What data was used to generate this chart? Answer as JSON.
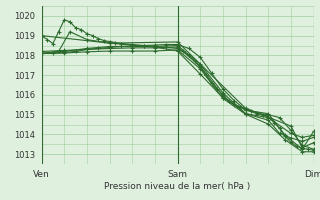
{
  "title": "Pression niveau de la mer( hPa )",
  "bg_color": "#dff0df",
  "grid_color": "#9ecf9e",
  "line_color": "#2d6a2d",
  "marker_color": "#2d6a2d",
  "xlim": [
    0,
    48
  ],
  "ylim": [
    1012.5,
    1020.5
  ],
  "yticks": [
    1013,
    1014,
    1015,
    1016,
    1017,
    1018,
    1019,
    1020
  ],
  "xtick_positions": [
    0,
    24,
    48
  ],
  "xtick_labels": [
    "Ven",
    "Sam",
    "Dim"
  ],
  "series": [
    [
      0,
      1019.0,
      1,
      1018.8,
      2,
      1018.6,
      3,
      1019.2,
      4,
      1019.8,
      5,
      1019.7,
      6,
      1019.4,
      7,
      1019.3,
      8,
      1019.1,
      9,
      1019.0,
      10,
      1018.85,
      11,
      1018.75,
      12,
      1018.7,
      13,
      1018.65,
      14,
      1018.6,
      16,
      1018.55,
      18,
      1018.5,
      20,
      1018.45,
      22,
      1018.4,
      24,
      1018.35,
      25,
      1018.2,
      26,
      1018.0,
      27,
      1017.7,
      28,
      1017.4,
      29,
      1017.0,
      30,
      1016.6,
      31,
      1016.3,
      32,
      1016.0,
      33,
      1015.7,
      34,
      1015.5,
      35,
      1015.4,
      36,
      1015.3,
      37,
      1015.2,
      38,
      1015.1,
      39,
      1015.0,
      40,
      1014.9,
      41,
      1014.6,
      42,
      1014.3,
      43,
      1013.9,
      44,
      1013.6,
      45,
      1013.4,
      46,
      1013.3,
      47,
      1013.25,
      48,
      1013.2
    ],
    [
      0,
      1018.1,
      2,
      1018.1,
      4,
      1018.15,
      6,
      1018.2,
      8,
      1018.3,
      10,
      1018.35,
      12,
      1018.4,
      14,
      1018.45,
      16,
      1018.48,
      18,
      1018.5,
      20,
      1018.52,
      22,
      1018.55,
      24,
      1018.55,
      26,
      1018.35,
      28,
      1017.9,
      30,
      1017.1,
      32,
      1016.3,
      34,
      1015.7,
      36,
      1015.25,
      38,
      1015.05,
      40,
      1015.0,
      42,
      1014.85,
      44,
      1014.2,
      46,
      1013.45,
      48,
      1013.25
    ],
    [
      0,
      1018.1,
      4,
      1018.2,
      8,
      1018.35,
      12,
      1018.45,
      16,
      1018.45,
      20,
      1018.45,
      24,
      1018.5,
      28,
      1017.55,
      32,
      1016.1,
      36,
      1015.05,
      40,
      1014.85,
      44,
      1014.05,
      46,
      1013.85,
      48,
      1013.95
    ],
    [
      0,
      1018.2,
      4,
      1018.25,
      8,
      1018.3,
      12,
      1018.35,
      16,
      1018.38,
      20,
      1018.38,
      24,
      1018.42,
      28,
      1017.45,
      32,
      1015.95,
      36,
      1015.05,
      40,
      1014.72,
      42,
      1014.05,
      44,
      1013.82,
      46,
      1013.65,
      48,
      1013.85
    ],
    [
      0,
      1018.1,
      4,
      1018.12,
      8,
      1018.18,
      12,
      1018.22,
      16,
      1018.22,
      20,
      1018.22,
      24,
      1018.28,
      28,
      1017.32,
      32,
      1015.82,
      36,
      1015.02,
      40,
      1014.52,
      43,
      1013.72,
      46,
      1013.12,
      48,
      1013.12
    ],
    [
      0,
      1019.0,
      12,
      1018.62,
      24,
      1018.68,
      36,
      1015.32,
      44,
      1014.42,
      46,
      1013.32,
      48,
      1013.58
    ],
    [
      0,
      1018.1,
      3,
      1018.2,
      5,
      1019.2,
      8,
      1018.8,
      12,
      1018.62,
      16,
      1018.52,
      20,
      1018.42,
      24,
      1018.22,
      28,
      1017.05,
      32,
      1015.85,
      36,
      1015.22,
      40,
      1015.05,
      43,
      1013.95,
      46,
      1013.25,
      48,
      1014.15
    ]
  ]
}
